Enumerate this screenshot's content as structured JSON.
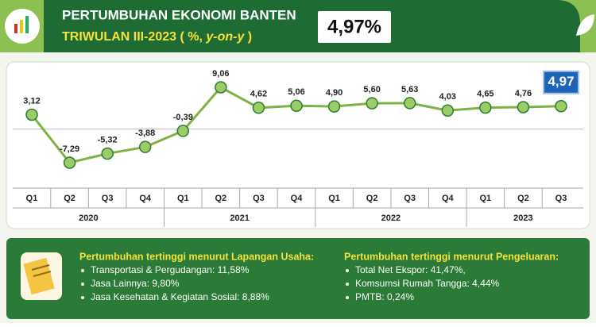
{
  "header": {
    "title": "PERTUMBUHAN EKONOMI BANTEN",
    "subtitle_parts": [
      "TRIWULAN III-2023 ( %, ",
      "y-on-y",
      " )"
    ],
    "headline": "4,97%"
  },
  "chart_data": {
    "type": "line",
    "categories": [
      "Q1",
      "Q2",
      "Q3",
      "Q4",
      "Q1",
      "Q2",
      "Q3",
      "Q4",
      "Q1",
      "Q2",
      "Q3",
      "Q4",
      "Q1",
      "Q2",
      "Q3"
    ],
    "years": [
      "2020",
      "2021",
      "2022",
      "2023"
    ],
    "series": [
      {
        "color": "#7cb342",
        "values": [
          3.12,
          -7.29,
          -5.32,
          -3.88,
          -0.39,
          9.06,
          4.62,
          5.06,
          4.9,
          5.6,
          5.63,
          4.03,
          4.65,
          4.76,
          4.97
        ],
        "value_labels": [
          "3,12",
          "-7,29",
          "-5,32",
          "-3,88",
          "-0,39",
          "9,06",
          "4,62",
          "5,06",
          "4,90",
          "5,60",
          "5,63",
          "4,03",
          "4,65",
          "4,76",
          "4,97"
        ]
      }
    ]
  },
  "panels": [
    {
      "heading": "Pertumbuhan tertinggi menurut Lapangan Usaha:",
      "items": [
        "Transportasi & Pergudangan:  11,58%",
        "Jasa Lainnya:  9,80%",
        "Jasa Kesehatan & Kegiatan Sosial:  8,88%"
      ]
    },
    {
      "heading": "Pertumbuhan tertinggi menurut Pengeluaran:",
      "items": [
        "Total Net Ekspor:  41,47%,",
        "Komsumsi Rumah Tangga:  4,44%",
        "PMTB:  0,24%"
      ]
    }
  ]
}
